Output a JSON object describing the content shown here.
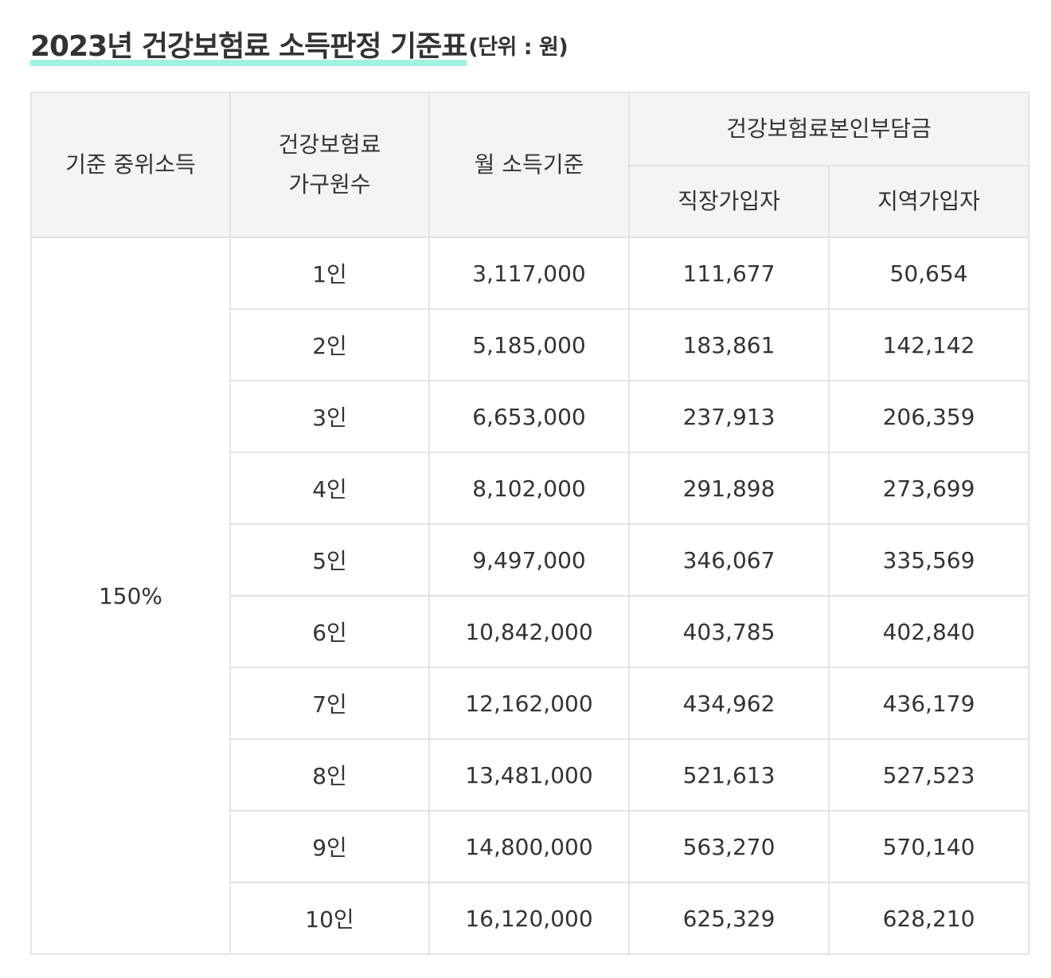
{
  "title": {
    "main": "2023년 건강보험료 소득판정 기준표",
    "unit": "(단위 : 원)"
  },
  "table": {
    "headers": {
      "median": "기준 중위소득",
      "household_line1": "건강보험료",
      "household_line2": "가구원수",
      "income": "월 소득기준",
      "premium_group": "건강보험료본인부담금",
      "employee": "직장가입자",
      "regional": "지역가입자"
    },
    "median_value": "150%",
    "rows": [
      {
        "household": "1인",
        "income": "3,117,000",
        "employee": "111,677",
        "regional": "50,654"
      },
      {
        "household": "2인",
        "income": "5,185,000",
        "employee": "183,861",
        "regional": "142,142"
      },
      {
        "household": "3인",
        "income": "6,653,000",
        "employee": "237,913",
        "regional": "206,359"
      },
      {
        "household": "4인",
        "income": "8,102,000",
        "employee": "291,898",
        "regional": "273,699"
      },
      {
        "household": "5인",
        "income": "9,497,000",
        "employee": "346,067",
        "regional": "335,569"
      },
      {
        "household": "6인",
        "income": "10,842,000",
        "employee": "403,785",
        "regional": "402,840"
      },
      {
        "household": "7인",
        "income": "12,162,000",
        "employee": "434,962",
        "regional": "436,179"
      },
      {
        "household": "8인",
        "income": "13,481,000",
        "employee": "521,613",
        "regional": "527,523"
      },
      {
        "household": "9인",
        "income": "14,800,000",
        "employee": "563,270",
        "regional": "570,140"
      },
      {
        "household": "10인",
        "income": "16,120,000",
        "employee": "625,329",
        "regional": "628,210"
      }
    ]
  },
  "colors": {
    "title_highlight": "#9ff3df",
    "header_bg": "#f4f4f4",
    "border": "#e4e4e4",
    "text": "#333333"
  }
}
